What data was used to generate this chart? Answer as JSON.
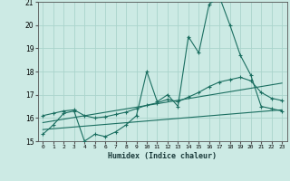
{
  "xlabel": "Humidex (Indice chaleur)",
  "background_color": "#cceae4",
  "grid_color": "#aad4cc",
  "line_color": "#1a6e60",
  "xlim": [
    -0.5,
    23.5
  ],
  "ylim": [
    15,
    21
  ],
  "yticks": [
    15,
    16,
    17,
    18,
    19,
    20,
    21
  ],
  "xticks": [
    0,
    1,
    2,
    3,
    4,
    5,
    6,
    7,
    8,
    9,
    10,
    11,
    12,
    13,
    14,
    15,
    16,
    17,
    18,
    19,
    20,
    21,
    22,
    23
  ],
  "series1_x": [
    0,
    1,
    2,
    3,
    4,
    5,
    6,
    7,
    8,
    9,
    10,
    11,
    12,
    13,
    14,
    15,
    16,
    17,
    18,
    19,
    20,
    21,
    22,
    23
  ],
  "series1_y": [
    15.3,
    15.7,
    16.2,
    16.3,
    15.0,
    15.3,
    15.2,
    15.4,
    15.7,
    16.1,
    18.0,
    16.7,
    17.0,
    16.5,
    19.5,
    18.8,
    20.9,
    21.2,
    20.0,
    18.7,
    17.85,
    16.5,
    16.4,
    16.3
  ],
  "series2_x": [
    0,
    1,
    2,
    3,
    4,
    5,
    6,
    7,
    8,
    9,
    10,
    11,
    12,
    13,
    14,
    15,
    16,
    17,
    18,
    19,
    20,
    21,
    22,
    23
  ],
  "series2_y": [
    16.1,
    16.2,
    16.3,
    16.35,
    16.1,
    16.0,
    16.05,
    16.15,
    16.25,
    16.4,
    16.55,
    16.65,
    16.8,
    16.7,
    16.9,
    17.1,
    17.35,
    17.55,
    17.65,
    17.75,
    17.6,
    17.1,
    16.85,
    16.75
  ],
  "series3_x": [
    0,
    23
  ],
  "series3_y": [
    15.8,
    17.5
  ],
  "series4_x": [
    0,
    23
  ],
  "series4_y": [
    15.5,
    16.35
  ]
}
